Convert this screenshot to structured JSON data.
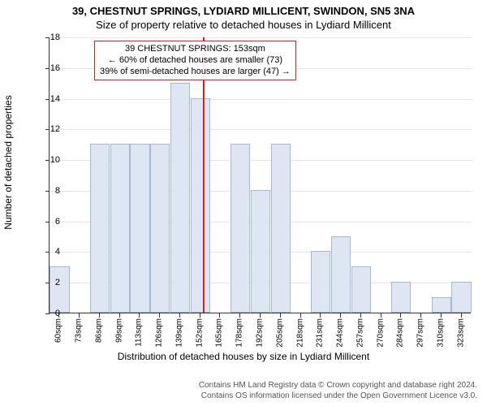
{
  "header": {
    "main": "39, CHESTNUT SPRINGS, LYDIARD MILLICENT, SWINDON, SN5 3NA",
    "sub": "Size of property relative to detached houses in Lydiard Millicent"
  },
  "chart": {
    "type": "histogram",
    "ylabel": "Number of detached properties",
    "xlabel": "Distribution of detached houses by size in Lydiard Millicent",
    "ylim": [
      0,
      18
    ],
    "ytick_step": 2,
    "bar_color": "#dde6f2",
    "bar_border_color": "#a8b8d0",
    "grid_color": "#e6e6e6",
    "axis_color": "#333333",
    "background_color": "#ffffff",
    "categories": [
      "60sqm",
      "73sqm",
      "86sqm",
      "99sqm",
      "113sqm",
      "126sqm",
      "139sqm",
      "152sqm",
      "165sqm",
      "178sqm",
      "192sqm",
      "205sqm",
      "218sqm",
      "231sqm",
      "244sqm",
      "257sqm",
      "270sqm",
      "284sqm",
      "297sqm",
      "310sqm",
      "323sqm"
    ],
    "values": [
      3,
      0,
      11,
      11,
      11,
      11,
      15,
      14,
      0,
      11,
      8,
      11,
      0,
      4,
      5,
      3,
      0,
      2,
      0,
      1,
      2
    ],
    "reference": {
      "position_index": 7.15,
      "color": "#d62020",
      "box": {
        "line1": "39 CHESTNUT SPRINGS: 153sqm",
        "line2": "← 60% of detached houses are smaller (73)",
        "line3": "39% of semi-detached houses are larger (47) →"
      }
    },
    "label_fontsize": 12,
    "tick_fontsize": 11,
    "xtick_fontsize": 10
  },
  "footer": {
    "line1": "Contains HM Land Registry data © Crown copyright and database right 2024.",
    "line2": "Contains OS information licensed under the Open Government Licence v3.0."
  }
}
